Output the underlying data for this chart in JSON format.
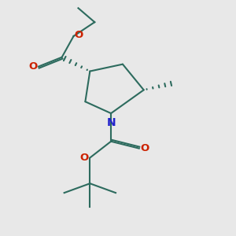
{
  "bg_color": "#e8e8e8",
  "bond_color": "#2d6b5e",
  "N_color": "#2222cc",
  "O_color": "#cc2200",
  "line_width": 1.5,
  "font_size": 9.5,
  "fig_size": [
    3.0,
    3.0
  ],
  "dpi": 100,
  "xlim": [
    0,
    10
  ],
  "ylim": [
    0,
    10
  ]
}
